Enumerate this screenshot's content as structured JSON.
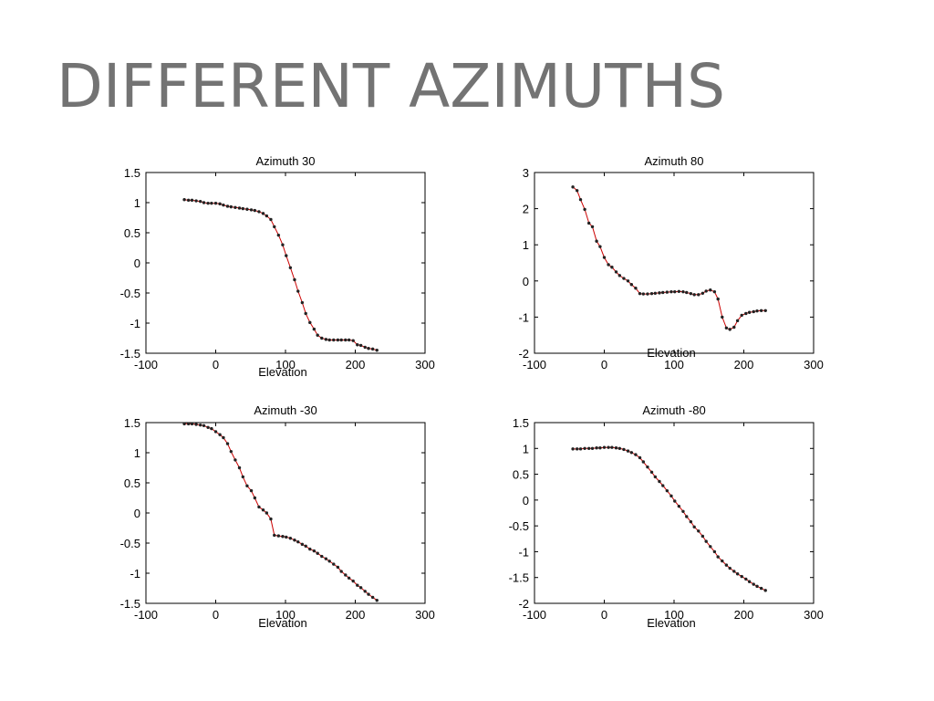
{
  "slide": {
    "title": "DIFFERENT AZIMUTHS",
    "title_color": "#737373"
  },
  "series_color": "#cc0000",
  "chart_data": [
    {
      "type": "line",
      "title": "Azimuth 30",
      "xlabel": "Elevation",
      "ylabel": "",
      "xlim": [
        -100,
        300
      ],
      "ylim": [
        -1.5,
        1.5
      ],
      "xticks": [
        -100,
        0,
        100,
        200,
        300
      ],
      "xtick_labels": [
        "-100",
        "0",
        "100",
        "200",
        "300"
      ],
      "yticks": [
        1.5,
        1,
        0.5,
        0,
        -0.5,
        -1,
        -1.5
      ],
      "ytick_labels": [
        "1.5",
        "1",
        "0.5",
        "0",
        "-0.5",
        "-1",
        "-1.5"
      ],
      "grid": false,
      "series": [
        {
          "x": [
            -45,
            -39,
            -34,
            -28,
            -22,
            -17,
            -11,
            -6,
            0,
            6,
            11,
            17,
            22,
            28,
            34,
            39,
            45,
            51,
            56,
            62,
            68,
            73,
            79,
            84,
            90,
            96,
            101,
            107,
            113,
            118,
            124,
            129,
            135,
            141,
            146,
            152,
            158,
            163,
            169,
            175,
            180,
            186,
            191,
            197,
            203,
            208,
            214,
            219,
            225,
            231
          ],
          "y": [
            1.05,
            1.04,
            1.04,
            1.03,
            1.02,
            1.0,
            0.99,
            0.99,
            0.99,
            0.98,
            0.96,
            0.94,
            0.93,
            0.92,
            0.91,
            0.9,
            0.89,
            0.88,
            0.87,
            0.85,
            0.82,
            0.78,
            0.72,
            0.6,
            0.46,
            0.3,
            0.12,
            -0.08,
            -0.28,
            -0.47,
            -0.66,
            -0.84,
            -0.99,
            -1.1,
            -1.2,
            -1.25,
            -1.27,
            -1.28,
            -1.28,
            -1.28,
            -1.28,
            -1.28,
            -1.28,
            -1.29,
            -1.36,
            -1.37,
            -1.4,
            -1.42,
            -1.43,
            -1.45
          ]
        }
      ]
    },
    {
      "type": "line",
      "title": "Azimuth 80",
      "xlabel": "Elevation",
      "ylabel": "",
      "xlim": [
        -100,
        300
      ],
      "ylim": [
        -2,
        3
      ],
      "xticks": [
        -100,
        0,
        100,
        200,
        300
      ],
      "xtick_labels": [
        "-100",
        "0",
        "100",
        "200",
        "300"
      ],
      "yticks": [
        3,
        2,
        1,
        0,
        -1,
        -2
      ],
      "ytick_labels": [
        "3",
        "2",
        "1",
        "0",
        "-1",
        "-2"
      ],
      "grid": false,
      "series": [
        {
          "x": [
            -45,
            -39,
            -34,
            -28,
            -22,
            -17,
            -11,
            -6,
            0,
            6,
            11,
            17,
            22,
            28,
            34,
            39,
            45,
            51,
            56,
            62,
            68,
            73,
            79,
            84,
            90,
            96,
            101,
            107,
            113,
            118,
            124,
            129,
            135,
            141,
            146,
            152,
            158,
            163,
            169,
            175,
            180,
            186,
            191,
            197,
            203,
            208,
            214,
            219,
            225,
            231
          ],
          "y": [
            2.6,
            2.5,
            2.25,
            1.98,
            1.6,
            1.5,
            1.1,
            0.95,
            0.65,
            0.45,
            0.38,
            0.25,
            0.15,
            0.07,
            0.0,
            -0.1,
            -0.2,
            -0.35,
            -0.36,
            -0.36,
            -0.35,
            -0.34,
            -0.33,
            -0.32,
            -0.31,
            -0.3,
            -0.3,
            -0.29,
            -0.3,
            -0.32,
            -0.35,
            -0.38,
            -0.38,
            -0.34,
            -0.28,
            -0.25,
            -0.3,
            -0.5,
            -1.0,
            -1.3,
            -1.34,
            -1.28,
            -1.1,
            -0.95,
            -0.9,
            -0.87,
            -0.85,
            -0.83,
            -0.82,
            -0.82
          ]
        }
      ]
    },
    {
      "type": "line",
      "title": "Azimuth -30",
      "xlabel": "Elevation",
      "ylabel": "",
      "xlim": [
        -100,
        300
      ],
      "ylim": [
        -1.5,
        1.5
      ],
      "xticks": [
        -100,
        0,
        100,
        200,
        300
      ],
      "xtick_labels": [
        "-100",
        "0",
        "100",
        "200",
        "300"
      ],
      "yticks": [
        1.5,
        1,
        0.5,
        0,
        -0.5,
        -1,
        -1.5
      ],
      "ytick_labels": [
        "1.5",
        "1",
        "0.5",
        "0",
        "-0.5",
        "-1",
        "-1.5"
      ],
      "grid": false,
      "series": [
        {
          "x": [
            -45,
            -39,
            -34,
            -28,
            -22,
            -17,
            -11,
            -6,
            0,
            6,
            11,
            17,
            22,
            28,
            34,
            39,
            45,
            51,
            56,
            62,
            68,
            73,
            79,
            84,
            90,
            96,
            101,
            107,
            113,
            118,
            124,
            129,
            135,
            141,
            146,
            152,
            158,
            163,
            169,
            175,
            180,
            186,
            191,
            197,
            203,
            208,
            214,
            219,
            225,
            231
          ],
          "y": [
            1.48,
            1.48,
            1.48,
            1.47,
            1.46,
            1.45,
            1.42,
            1.4,
            1.35,
            1.3,
            1.25,
            1.15,
            1.02,
            0.88,
            0.75,
            0.6,
            0.45,
            0.37,
            0.25,
            0.1,
            0.05,
            0.0,
            -0.1,
            -0.37,
            -0.38,
            -0.39,
            -0.4,
            -0.42,
            -0.45,
            -0.48,
            -0.52,
            -0.55,
            -0.6,
            -0.63,
            -0.67,
            -0.72,
            -0.76,
            -0.8,
            -0.85,
            -0.9,
            -0.97,
            -1.03,
            -1.08,
            -1.13,
            -1.2,
            -1.24,
            -1.3,
            -1.35,
            -1.4,
            -1.45
          ]
        }
      ]
    },
    {
      "type": "line",
      "title": "Azimuth -80",
      "xlabel": "Elevation",
      "ylabel": "",
      "xlim": [
        -100,
        300
      ],
      "ylim": [
        -2,
        1.5
      ],
      "xticks": [
        -100,
        0,
        100,
        200,
        300
      ],
      "xtick_labels": [
        "-100",
        "0",
        "100",
        "200",
        "300"
      ],
      "yticks": [
        1.5,
        1,
        0.5,
        0,
        -0.5,
        -1,
        -1.5,
        -2
      ],
      "ytick_labels": [
        "1.5",
        "1",
        "0.5",
        "0",
        "-0.5",
        "-1",
        "-1.5",
        "-2"
      ],
      "grid": false,
      "series": [
        {
          "x": [
            -45,
            -39,
            -34,
            -28,
            -22,
            -17,
            -11,
            -6,
            0,
            6,
            11,
            17,
            22,
            28,
            34,
            39,
            45,
            51,
            56,
            62,
            68,
            73,
            79,
            84,
            90,
            96,
            101,
            107,
            113,
            118,
            124,
            129,
            135,
            141,
            146,
            152,
            158,
            163,
            169,
            175,
            180,
            186,
            191,
            197,
            203,
            208,
            214,
            219,
            225,
            231
          ],
          "y": [
            0.99,
            0.99,
            0.99,
            1.0,
            1.0,
            1.0,
            1.01,
            1.01,
            1.02,
            1.02,
            1.02,
            1.01,
            1.0,
            0.98,
            0.95,
            0.92,
            0.88,
            0.82,
            0.74,
            0.64,
            0.54,
            0.45,
            0.36,
            0.28,
            0.18,
            0.08,
            -0.02,
            -0.12,
            -0.22,
            -0.32,
            -0.42,
            -0.52,
            -0.6,
            -0.7,
            -0.8,
            -0.9,
            -1.0,
            -1.1,
            -1.18,
            -1.26,
            -1.32,
            -1.38,
            -1.43,
            -1.48,
            -1.53,
            -1.58,
            -1.63,
            -1.67,
            -1.71,
            -1.75
          ]
        }
      ]
    }
  ]
}
